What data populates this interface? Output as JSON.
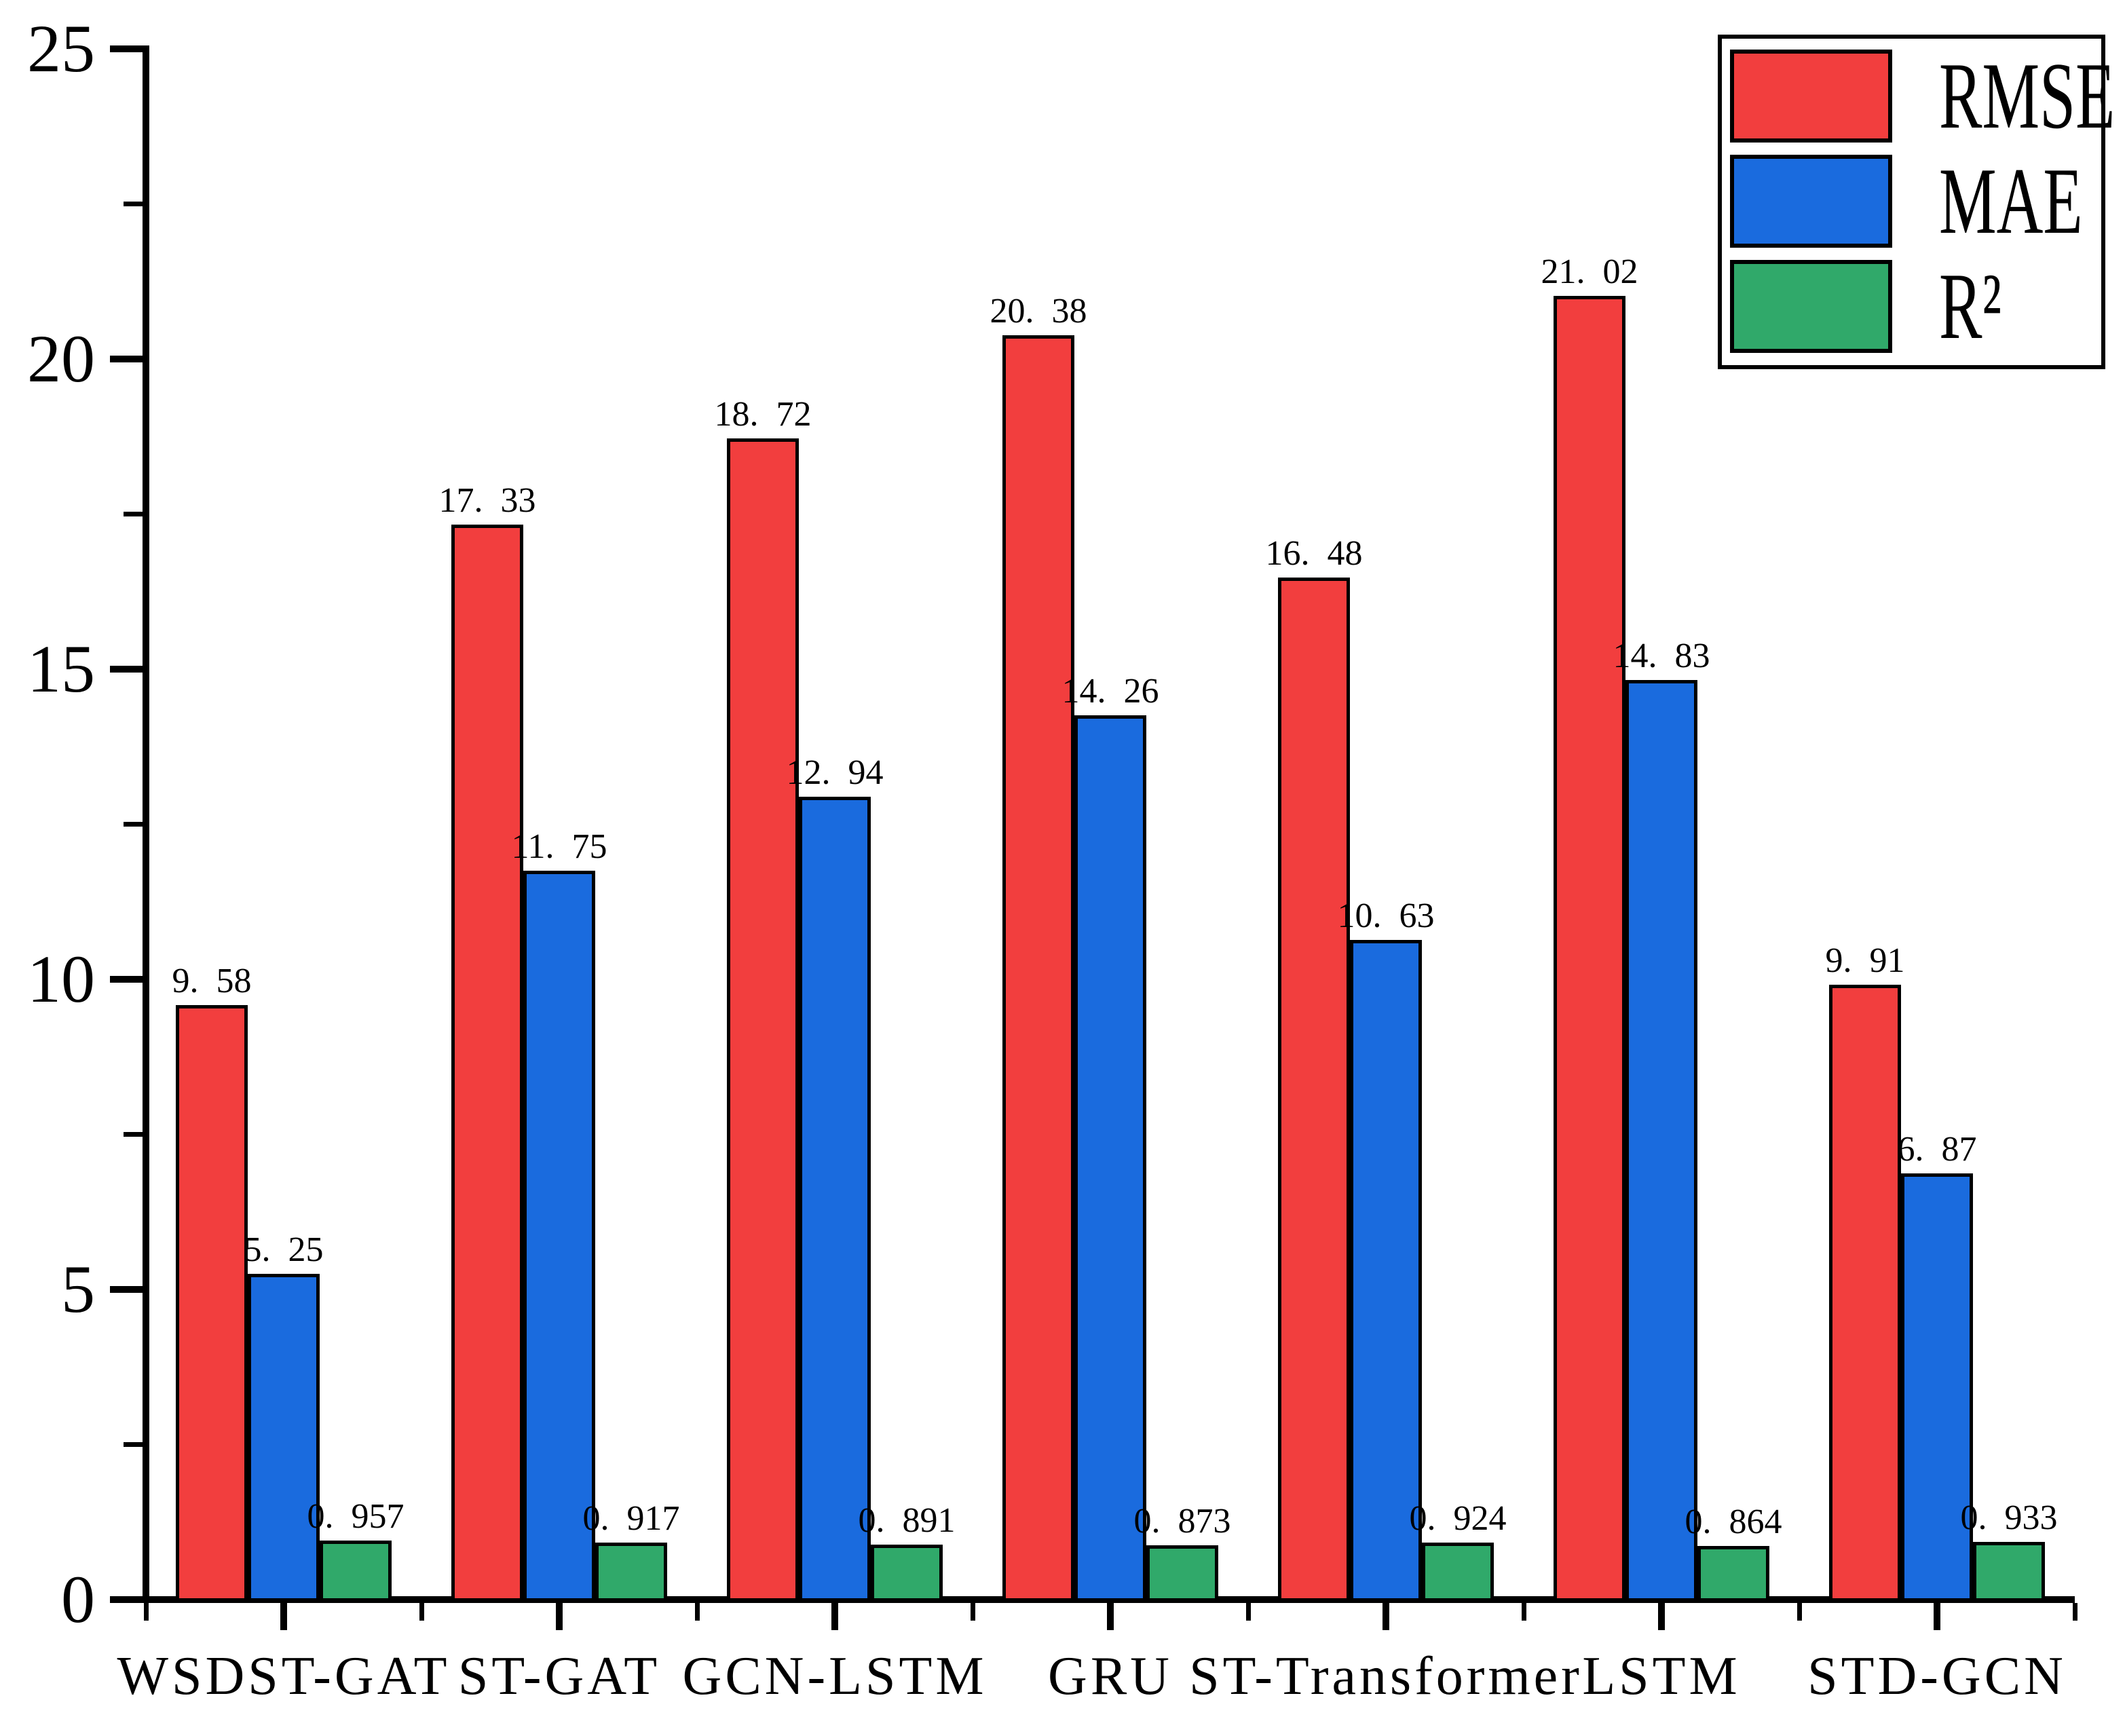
{
  "figure": {
    "background_color": "#ffffff",
    "axis_color": "#000000",
    "bar_edge_color": "#000000"
  },
  "chart_data": {
    "type": "bar",
    "title": "",
    "xlabel": "",
    "ylabel": "",
    "categories": [
      "WSDST-GAT",
      "ST-GAT",
      "GCN-LSTM",
      "GRU",
      "ST-Transformer",
      "LSTM",
      "STD-GCN"
    ],
    "series": [
      {
        "name": "RMSE",
        "color": "#f23e3e",
        "values": [
          9.58,
          17.33,
          18.72,
          20.38,
          16.48,
          21.02,
          9.91
        ],
        "labels": [
          "9.58",
          "17.33",
          "18.72",
          "20.38",
          "16.48",
          "21.02",
          "9.91"
        ]
      },
      {
        "name": "MAE",
        "color": "#1a6bde",
        "values": [
          5.25,
          11.75,
          12.94,
          14.26,
          10.63,
          14.83,
          6.87
        ],
        "labels": [
          "5.25",
          "11.75",
          "12.94",
          "14.26",
          "10.63",
          "14.83",
          "6.87"
        ]
      },
      {
        "name": "R²",
        "color": "#30a96a",
        "values": [
          0.957,
          0.917,
          0.891,
          0.873,
          0.924,
          0.864,
          0.933
        ],
        "labels": [
          "0.957",
          "0.917",
          "0.891",
          "0.873",
          "0.924",
          "0.864",
          "0.933"
        ]
      }
    ],
    "ylim": [
      0,
      25
    ],
    "yticks": [
      0,
      5,
      10,
      15,
      20,
      25
    ],
    "ytick_labels": [
      "0",
      "5",
      "10",
      "15",
      "20",
      "25"
    ],
    "yticks_minor": [
      2.5,
      7.5,
      12.5,
      17.5,
      22.5
    ],
    "grid": false,
    "legend_position": "upper right",
    "bar_value_labels_shown": true
  },
  "legend": {
    "items": [
      {
        "label": "RMSE",
        "color": "#f23e3e"
      },
      {
        "label": "MAE",
        "color": "#1a6bde"
      },
      {
        "label": "R²",
        "color": "#30a96a"
      }
    ]
  }
}
